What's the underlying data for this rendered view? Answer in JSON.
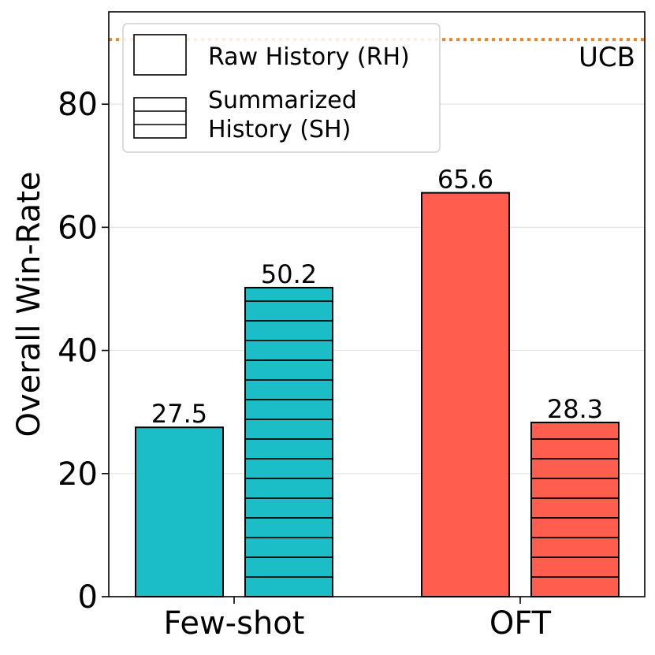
{
  "chart_data": {
    "type": "bar",
    "categories": [
      "Few-shot",
      "OFT"
    ],
    "series": [
      {
        "name": "Raw History (RH)",
        "values": [
          27.5,
          65.6
        ],
        "colors": [
          "#1BBEC6",
          "#FF5E4E"
        ],
        "hatch": "none"
      },
      {
        "name": "Summarized History (SH)",
        "values": [
          50.2,
          28.3
        ],
        "colors": [
          "#1BBEC6",
          "#FF5E4E"
        ],
        "hatch": "horizontal"
      }
    ],
    "data_labels": [
      "27.5",
      "50.2",
      "65.6",
      "28.3"
    ],
    "ylabel": "Overall Win-Rate",
    "xlabel": "",
    "ylim": [
      0,
      95
    ],
    "yticks": [
      0,
      20,
      40,
      60,
      80
    ],
    "grid": "horizontal",
    "reference_line": {
      "label": "UCB",
      "value": 90.5,
      "color": "#F28522",
      "style": "dotted"
    },
    "legend": {
      "placement": "top-left",
      "entries": [
        "Raw History (RH)",
        "Summarized History (SH)"
      ]
    }
  }
}
